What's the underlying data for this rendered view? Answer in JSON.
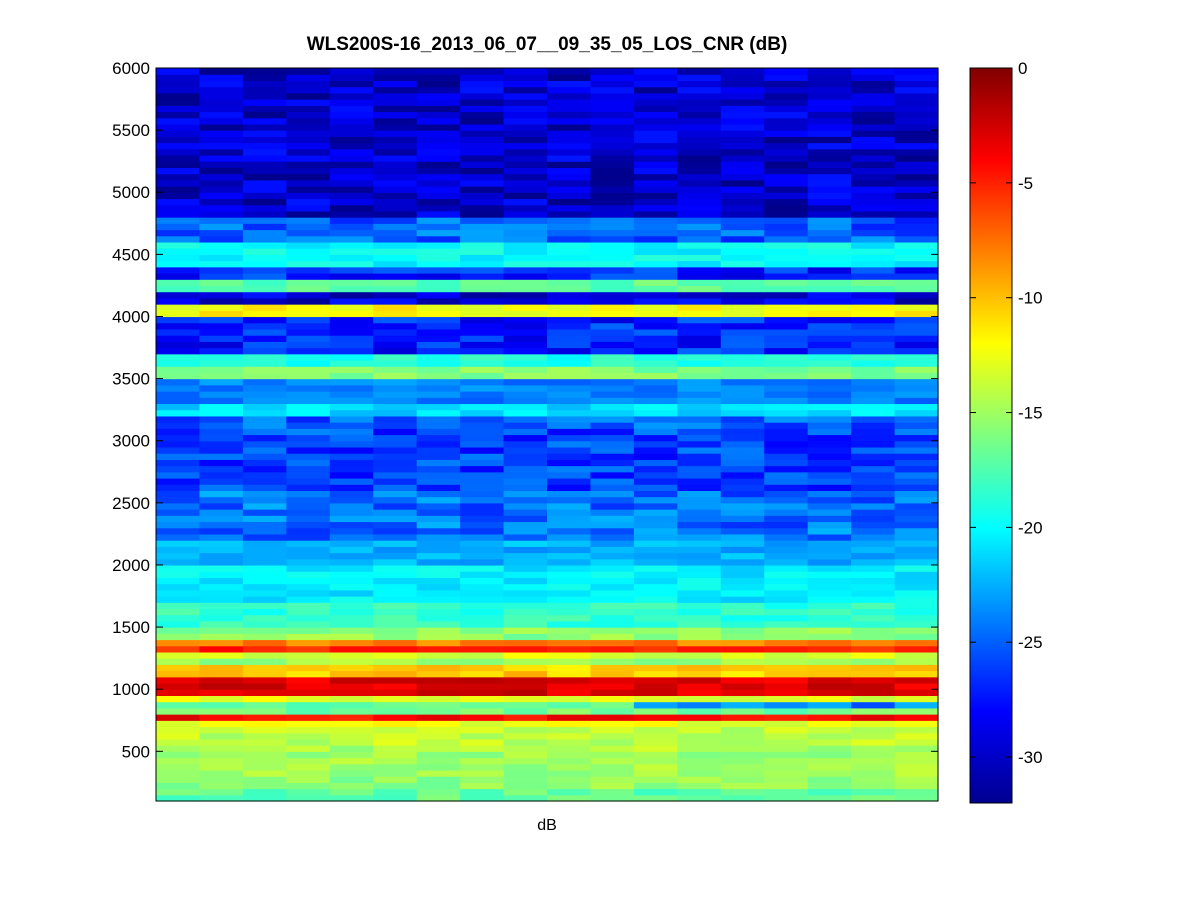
{
  "chart_data": {
    "type": "heatmap",
    "title": "WLS200S-16_2013_06_07__09_35_05_LOS_CNR (dB)",
    "xlabel": "dB",
    "ylabel": "",
    "ylim": [
      100,
      6000
    ],
    "y_ticks": [
      500,
      1000,
      1500,
      2000,
      2500,
      3000,
      3500,
      4000,
      4500,
      5000,
      5500,
      6000
    ],
    "colorbar": {
      "range": [
        -32,
        0
      ],
      "ticks": [
        0,
        -5,
        -10,
        -15,
        -20,
        -25,
        -30
      ],
      "colormap": "jet"
    },
    "columns": 18,
    "bin_height": 50,
    "bands": [
      {
        "range": [
          100,
          180
        ],
        "value": -17
      },
      {
        "range": [
          180,
          300
        ],
        "value": -15.5
      },
      {
        "range": [
          300,
          480
        ],
        "value": -15
      },
      {
        "range": [
          480,
          560
        ],
        "value": -14.5
      },
      {
        "range": [
          560,
          700
        ],
        "value": -14
      },
      {
        "range": [
          700,
          760
        ],
        "value": -12.5
      },
      {
        "range": [
          760,
          810
        ],
        "value": -4
      },
      {
        "range": [
          810,
          850
        ],
        "value": -16.5
      },
      {
        "range": [
          850,
          900
        ],
        "value": -17,
        "right_from_col": 11,
        "right_value": -24.5
      },
      {
        "range": [
          900,
          960
        ],
        "value": -13
      },
      {
        "range": [
          960,
          1080
        ],
        "value": -3
      },
      {
        "range": [
          1080,
          1120
        ],
        "value": -13
      },
      {
        "range": [
          1120,
          1180
        ],
        "value": -10.5
      },
      {
        "range": [
          1180,
          1250
        ],
        "value": -15
      },
      {
        "range": [
          1250,
          1290
        ],
        "value": -13
      },
      {
        "range": [
          1290,
          1340
        ],
        "value": -5
      },
      {
        "range": [
          1340,
          1380
        ],
        "value": -8
      },
      {
        "range": [
          1380,
          1500
        ],
        "value": -15.5
      },
      {
        "range": [
          1500,
          1700
        ],
        "value": -18.5
      },
      {
        "range": [
          1700,
          2000
        ],
        "value": -20.5
      },
      {
        "range": [
          2000,
          2200
        ],
        "value": -22.5
      },
      {
        "range": [
          2200,
          2600
        ],
        "value": -24.5
      },
      {
        "range": [
          2600,
          3100
        ],
        "value": -26
      },
      {
        "range": [
          3100,
          3200
        ],
        "value": -25
      },
      {
        "range": [
          3200,
          3300
        ],
        "value": -21
      },
      {
        "range": [
          3300,
          3500
        ],
        "value": -24
      },
      {
        "range": [
          3500,
          3600
        ],
        "value": -16
      },
      {
        "range": [
          3600,
          3700
        ],
        "value": -19
      },
      {
        "range": [
          3700,
          4000
        ],
        "value": -27
      },
      {
        "range": [
          4000,
          4100
        ],
        "value": -12
      },
      {
        "range": [
          4100,
          4200
        ],
        "value": -29
      },
      {
        "range": [
          4200,
          4300
        ],
        "value": -17
      },
      {
        "range": [
          4300,
          4400
        ],
        "value": -27
      },
      {
        "range": [
          4400,
          4600
        ],
        "value": -20
      },
      {
        "range": [
          4600,
          4800
        ],
        "value": -25
      },
      {
        "range": [
          4800,
          6000
        ],
        "value": -29.5
      }
    ]
  }
}
